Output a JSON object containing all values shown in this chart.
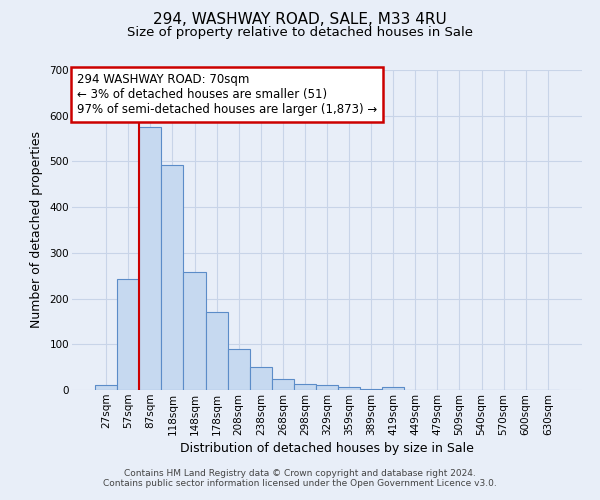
{
  "title": "294, WASHWAY ROAD, SALE, M33 4RU",
  "subtitle": "Size of property relative to detached houses in Sale",
  "xlabel": "Distribution of detached houses by size in Sale",
  "ylabel": "Number of detached properties",
  "bar_labels": [
    "27sqm",
    "57sqm",
    "87sqm",
    "118sqm",
    "148sqm",
    "178sqm",
    "208sqm",
    "238sqm",
    "268sqm",
    "298sqm",
    "329sqm",
    "359sqm",
    "389sqm",
    "419sqm",
    "449sqm",
    "479sqm",
    "509sqm",
    "540sqm",
    "570sqm",
    "600sqm",
    "630sqm"
  ],
  "bar_values": [
    12,
    243,
    575,
    493,
    258,
    170,
    90,
    50,
    25,
    13,
    10,
    6,
    3,
    7,
    0,
    0,
    0,
    0,
    0,
    0,
    0
  ],
  "bar_color": "#c6d9f0",
  "bar_edge_color": "#5b8cc8",
  "ylim": [
    0,
    700
  ],
  "yticks": [
    0,
    100,
    200,
    300,
    400,
    500,
    600,
    700
  ],
  "grid_color": "#c8d4e8",
  "background_color": "#e8eef8",
  "vline_color": "#cc0000",
  "annotation_box_text": "294 WASHWAY ROAD: 70sqm\n← 3% of detached houses are smaller (51)\n97% of semi-detached houses are larger (1,873) →",
  "annotation_box_color": "#cc0000",
  "footer_line1": "Contains HM Land Registry data © Crown copyright and database right 2024.",
  "footer_line2": "Contains public sector information licensed under the Open Government Licence v3.0.",
  "title_fontsize": 11,
  "subtitle_fontsize": 9.5,
  "axis_label_fontsize": 9,
  "tick_fontsize": 7.5,
  "annotation_fontsize": 8.5,
  "footer_fontsize": 6.5
}
